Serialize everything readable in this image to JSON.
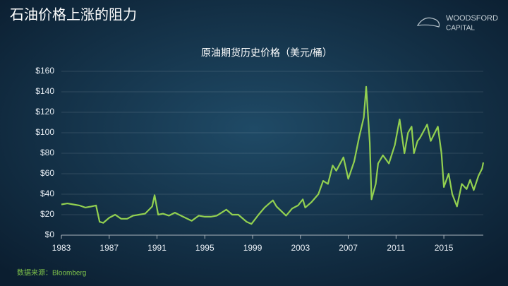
{
  "header": {
    "title": "石油价格上涨的阻力"
  },
  "logo": {
    "line1": "WOODSFORD",
    "line2": "CAPITAL"
  },
  "source": "数据来源：Bloomberg",
  "chart_data": {
    "type": "line",
    "title": "原油期货历史价格（美元/桶）",
    "x": [
      1983,
      1983.5,
      1984,
      1984.5,
      1985,
      1985.5,
      1985.9,
      1986.2,
      1986.5,
      1987,
      1987.5,
      1988,
      1988.5,
      1989,
      1989.5,
      1990,
      1990.6,
      1990.8,
      1991.1,
      1991.5,
      1992,
      1992.5,
      1993,
      1993.9,
      1994.5,
      1995,
      1995.5,
      1996,
      1996.8,
      1997.3,
      1997.8,
      1998.5,
      1998.9,
      1999.5,
      2000,
      2000.7,
      2001,
      2001.8,
      2002.3,
      2002.8,
      2003.2,
      2003.4,
      2003.9,
      2004.5,
      2004.9,
      2005.3,
      2005.7,
      2006,
      2006.6,
      2007,
      2007.5,
      2007.9,
      2008.3,
      2008.5,
      2008.8,
      2008.95,
      2009.3,
      2009.5,
      2009.9,
      2010.4,
      2010.9,
      2011.3,
      2011.7,
      2012,
      2012.3,
      2012.5,
      2012.8,
      2013,
      2013.6,
      2013.9,
      2014.5,
      2014.8,
      2015,
      2015.4,
      2015.7,
      2016.1,
      2016.5,
      2016.9,
      2017.2,
      2017.5,
      2017.9,
      2018.2,
      2018.3
    ],
    "series": [
      {
        "name": "原油期货",
        "color": "#92d050",
        "values": [
          30,
          31,
          30,
          29,
          27,
          28,
          29,
          13,
          12,
          17,
          20,
          16,
          16,
          19,
          20,
          21,
          28,
          39,
          20,
          21,
          19,
          22,
          19,
          14,
          19,
          18,
          18,
          19,
          25,
          20,
          20,
          13,
          11,
          20,
          27,
          34,
          28,
          19,
          26,
          29,
          35,
          27,
          32,
          40,
          53,
          50,
          68,
          63,
          76,
          55,
          72,
          95,
          115,
          145,
          90,
          35,
          50,
          70,
          78,
          70,
          88,
          113,
          80,
          100,
          106,
          80,
          92,
          95,
          108,
          92,
          106,
          80,
          47,
          60,
          40,
          28,
          50,
          45,
          54,
          44,
          58,
          65,
          71
        ]
      }
    ],
    "xlim": [
      1983,
      2018.3
    ],
    "xticks": [
      1983,
      1987,
      1991,
      1995,
      1999,
      2003,
      2007,
      2011,
      2015
    ],
    "ylim": [
      0,
      160
    ],
    "yticks": [
      {
        "value": 0,
        "label": "$0"
      },
      {
        "value": 20,
        "label": "$20"
      },
      {
        "value": 40,
        "label": "$40"
      },
      {
        "value": 60,
        "label": "$60"
      },
      {
        "value": 80,
        "label": "$80"
      },
      {
        "value": 100,
        "label": "$100"
      },
      {
        "value": 120,
        "label": "$120"
      },
      {
        "value": 140,
        "label": "$140"
      },
      {
        "value": 160,
        "label": "$160"
      }
    ],
    "grid": true
  }
}
